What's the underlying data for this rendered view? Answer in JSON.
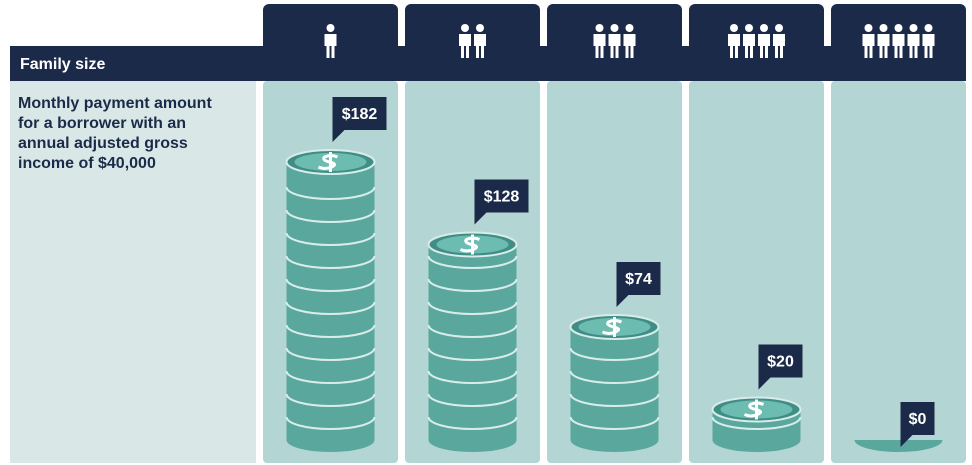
{
  "chart_data": {
    "type": "bar",
    "x_label": "Family size",
    "y_label": "Monthly payment amount for a borrower with an annual adjusted gross income of $40,000",
    "categories": [
      null,
      null,
      null,
      null,
      null
    ],
    "values": [
      182,
      128,
      74,
      20,
      0
    ],
    "value_labels": [
      "$182",
      "$128",
      "$74",
      "$20",
      "$0"
    ],
    "color": "#5aa79e"
  }
}
